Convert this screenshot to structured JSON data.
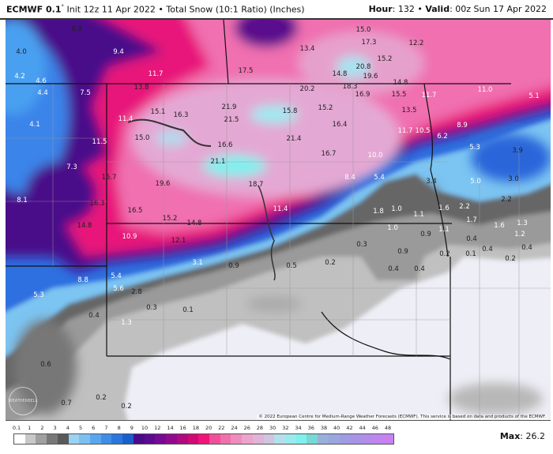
{
  "header": {
    "model": "ECMWF 0.1",
    "degree": "°",
    "init": "Init 12z 11 Apr 2022",
    "separator": "•",
    "product": "Total Snow (10:1 Ratio) (Inches)",
    "hour_label": "Hour",
    "hour": "132",
    "valid_label": "Valid",
    "valid": "00z Sun 17 Apr 2022"
  },
  "map": {
    "values": [
      "6.8",
      "4.0",
      "9.4",
      "4.2",
      "4.6",
      "11.7",
      "17.5",
      "13.8",
      "4.4",
      "7.5",
      "15.1",
      "16.3",
      "21.9",
      "21.5",
      "11.4",
      "4.1",
      "15.0",
      "11.5",
      "16.6",
      "21.1",
      "7.3",
      "15.7",
      "19.6",
      "18.7",
      "8.1",
      "16.3",
      "16.5",
      "15.2",
      "14.8",
      "14.8",
      "10.9",
      "12.1",
      "3.1",
      "0.9",
      "15.0",
      "13.4",
      "17.3",
      "12.2",
      "15.2",
      "20.8",
      "19.6",
      "14.8",
      "20.2",
      "18.3",
      "14.8",
      "16.9",
      "15.5",
      "11.7",
      "11.0",
      "15.8",
      "15.2",
      "13.5",
      "16.4",
      "11.7",
      "10.5",
      "8.9",
      "6.2",
      "21.4",
      "16.7",
      "10.0",
      "5.3",
      "3.9",
      "8.4",
      "5.4",
      "3.4",
      "5.0",
      "3.0",
      "2.2",
      "11.4",
      "1.8",
      "1.0",
      "1.1",
      "1.6",
      "2.2",
      "1.7",
      "1.6",
      "1.3",
      "1.0",
      "1.1",
      "1.2",
      "0.9",
      "0.4",
      "0.3",
      "0.9",
      "0.2",
      "0.1",
      "0.4",
      "0.4",
      "0.5",
      "0.2",
      "0.4",
      "0.4",
      "0.2",
      "8.8",
      "5.4",
      "5.6",
      "2.8",
      "5.3",
      "0.3",
      "0.1",
      "0.4",
      "1.3",
      "0.6",
      "0.7",
      "0.2",
      "0.2",
      "5.1"
    ],
    "copyright": "© 2022 European Centre for Medium-Range Weather Forecasts (ECMWF). This service is based on data and products of the ECMWF.",
    "watermark": "WEATHERBELL"
  },
  "colorbar": {
    "labels": [
      "0.1",
      "1",
      "2",
      "3",
      "4",
      "5",
      "6",
      "7",
      "8",
      "9",
      "10",
      "12",
      "14",
      "16",
      "18",
      "20",
      "22",
      "24",
      "26",
      "28",
      "30",
      "32",
      "34",
      "36",
      "38",
      "40",
      "42",
      "44",
      "46",
      "48"
    ],
    "colors": [
      "#ffffff",
      "#c8c8c8",
      "#a0a0a0",
      "#787878",
      "#5a5a5a",
      "#9ad2f4",
      "#7cc0f2",
      "#5aa6ee",
      "#3e8ee8",
      "#2a76dc",
      "#1a5ecc",
      "#4a0a8a",
      "#5c0a90",
      "#760a94",
      "#920a8c",
      "#b00a80",
      "#d00a74",
      "#f01478",
      "#f0509a",
      "#f070ac",
      "#f08cbc",
      "#eca4cc",
      "#e0b4d8",
      "#d0c4e0",
      "#b4e0ec",
      "#9aeaf0",
      "#80f0ee",
      "#78d8d4",
      "#98b0dc",
      "#9aa6e0",
      "#a09ce4",
      "#a894e6",
      "#b28cea",
      "#be86ee",
      "#c880f2"
    ],
    "max_label": "Max",
    "max_value": "26.2"
  }
}
